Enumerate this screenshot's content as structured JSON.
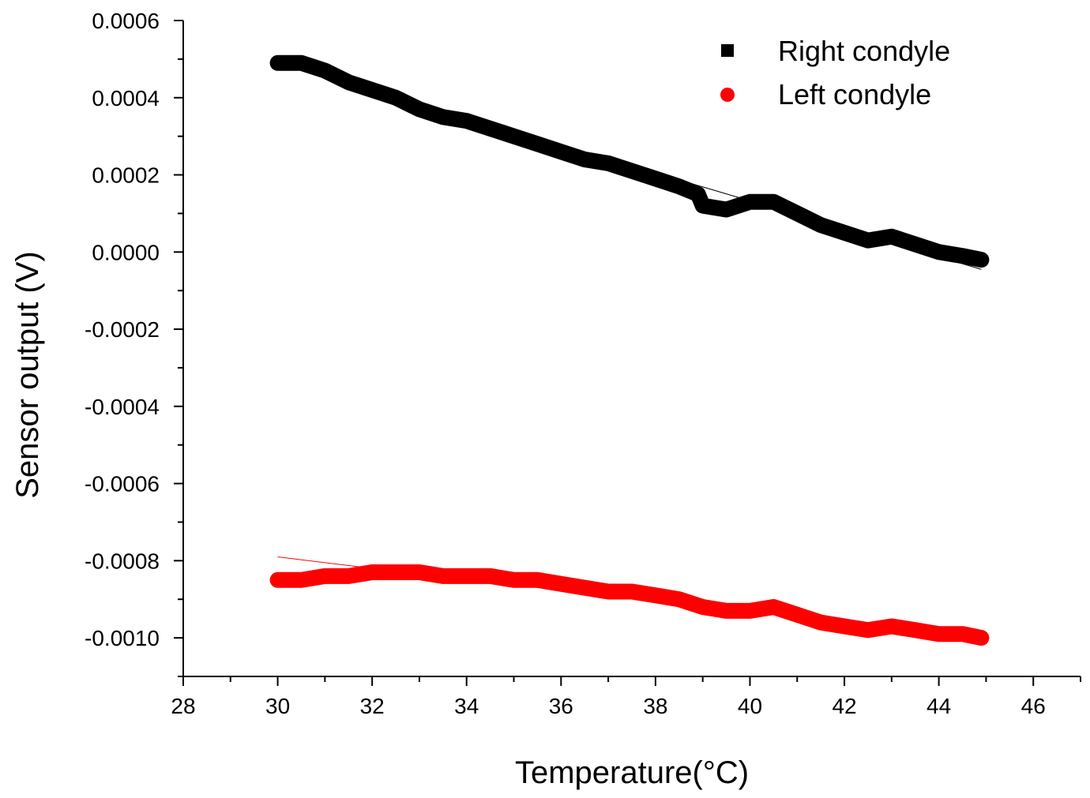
{
  "chart_data": {
    "type": "scatter",
    "title": "",
    "xlabel": "Temperature(°C)",
    "ylabel": "Sensor output (V)",
    "xlim": [
      28,
      47
    ],
    "ylim": [
      -0.0011,
      0.0006
    ],
    "xticks": [
      28,
      30,
      32,
      34,
      36,
      38,
      40,
      42,
      44,
      46
    ],
    "xtick_labels": [
      "28",
      "30",
      "32",
      "34",
      "36",
      "38",
      "40",
      "42",
      "44",
      "46"
    ],
    "yticks": [
      0.0006,
      0.0004,
      0.0002,
      0.0,
      -0.0002,
      -0.0004,
      -0.0006,
      -0.0008,
      -0.001
    ],
    "ytick_labels": [
      "0.0006",
      "0.0004",
      "0.0002",
      "0.0000",
      "-0.0002",
      "-0.0004",
      "-0.0006",
      "-0.0008",
      "-0.0010"
    ],
    "legend_position": "top-right",
    "series": [
      {
        "name": "Right condyle",
        "marker": "square",
        "color": "#000000",
        "x": [
          30.0,
          30.5,
          31.0,
          31.5,
          32.0,
          32.5,
          33.0,
          33.5,
          34.0,
          34.5,
          35.0,
          35.5,
          36.0,
          36.5,
          37.0,
          37.5,
          38.0,
          38.5,
          38.9,
          39.0,
          39.5,
          40.0,
          40.5,
          41.0,
          41.5,
          42.0,
          42.5,
          43.0,
          43.5,
          44.0,
          44.5,
          44.9
        ],
        "y": [
          0.00049,
          0.00049,
          0.00047,
          0.00044,
          0.00042,
          0.0004,
          0.00037,
          0.00035,
          0.00034,
          0.00032,
          0.0003,
          0.00028,
          0.00026,
          0.00024,
          0.00023,
          0.00021,
          0.00019,
          0.00017,
          0.00015,
          0.00012,
          0.00011,
          0.00013,
          0.00013,
          0.0001,
          7e-05,
          5e-05,
          3e-05,
          4e-05,
          2e-05,
          0.0,
          -1e-05,
          -2e-05
        ],
        "fit": {
          "x": [
            30.0,
            44.9
          ],
          "y": [
            0.000495,
            -4.5e-05
          ]
        }
      },
      {
        "name": "Left condyle",
        "marker": "circle",
        "color": "#ff0000",
        "x": [
          30.0,
          30.5,
          31.0,
          31.5,
          32.0,
          32.5,
          33.0,
          33.5,
          34.0,
          34.5,
          35.0,
          35.5,
          36.0,
          36.5,
          37.0,
          37.5,
          38.0,
          38.5,
          39.0,
          39.5,
          40.0,
          40.5,
          41.0,
          41.5,
          42.0,
          42.5,
          43.0,
          43.5,
          44.0,
          44.5,
          44.9
        ],
        "y": [
          -0.00085,
          -0.00085,
          -0.00084,
          -0.00084,
          -0.00083,
          -0.00083,
          -0.00083,
          -0.00084,
          -0.00084,
          -0.00084,
          -0.00085,
          -0.00085,
          -0.00086,
          -0.00087,
          -0.00088,
          -0.00088,
          -0.00089,
          -0.0009,
          -0.00092,
          -0.00093,
          -0.00093,
          -0.00092,
          -0.00094,
          -0.00096,
          -0.00097,
          -0.00098,
          -0.00097,
          -0.00098,
          -0.00099,
          -0.00099,
          -0.001
        ],
        "fit": {
          "x": [
            30.0,
            32.0
          ],
          "y": [
            -0.00079,
            -0.00082
          ]
        }
      }
    ]
  }
}
